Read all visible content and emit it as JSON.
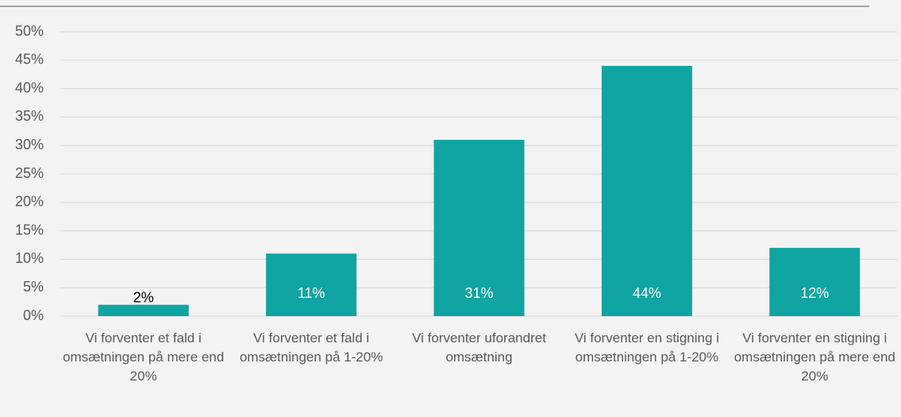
{
  "chart_data": {
    "type": "bar",
    "categories": [
      "Vi forventer et fald i omsætningen på mere end 20%",
      "Vi forventer et fald i omsætningen på 1-20%",
      "Vi forventer uforandret omsætning",
      "Vi forventer en stigning i omsætningen på 1-20%",
      "Vi forventer en stigning i omsætningen på mere end 20%"
    ],
    "values": [
      2,
      11,
      31,
      44,
      12
    ],
    "value_labels": [
      "2%",
      "11%",
      "31%",
      "44%",
      "12%"
    ],
    "color": "#10a5a2",
    "ylim": [
      0,
      50
    ],
    "yticks": [
      {
        "value": 0,
        "label": "0%"
      },
      {
        "value": 5,
        "label": "5%"
      },
      {
        "value": 10,
        "label": "10%"
      },
      {
        "value": 15,
        "label": "15%"
      },
      {
        "value": 20,
        "label": "20%"
      },
      {
        "value": 25,
        "label": "25%"
      },
      {
        "value": 30,
        "label": "30%"
      },
      {
        "value": 35,
        "label": "35%"
      },
      {
        "value": 40,
        "label": "40%"
      },
      {
        "value": 45,
        "label": "45%"
      },
      {
        "value": 50,
        "label": "50%"
      }
    ],
    "grid": true
  }
}
